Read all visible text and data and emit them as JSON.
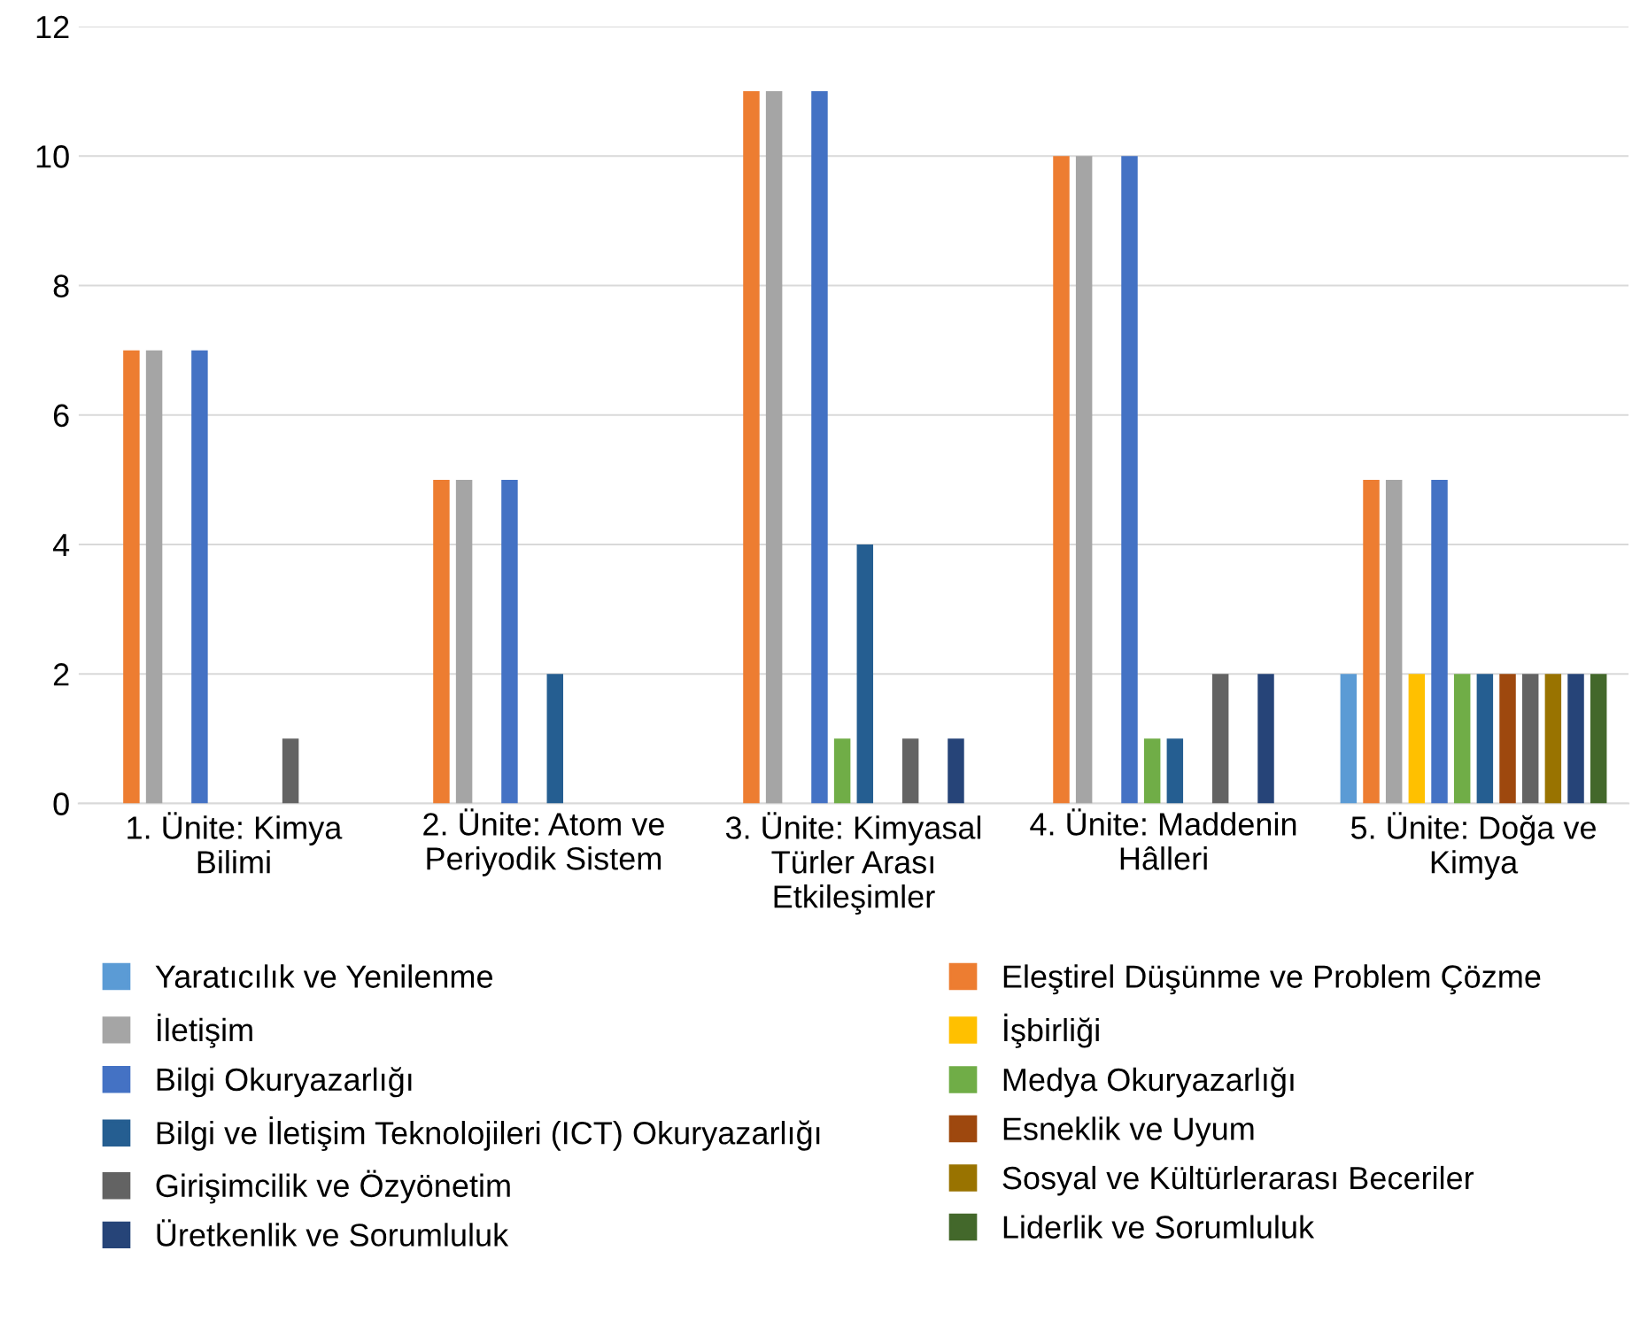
{
  "chart_data": {
    "type": "bar",
    "categories": [
      "1. Ünite: Kimya\nBilimi",
      "2. Ünite: Atom ve\nPeriyodik Sistem",
      "3. Ünite: Kimyasal\nTürler Arası\nEtkileşimler",
      "4. Ünite: Maddenin\nHâlleri",
      "5. Ünite: Doğa ve\nKimya"
    ],
    "series": [
      {
        "name": "Yaratıcılık ve Yenilenme",
        "color": "#5b9bd5",
        "values": [
          0,
          0,
          0,
          0,
          2
        ]
      },
      {
        "name": "Eleştirel Düşünme ve Problem Çözme",
        "color": "#ed7d31",
        "values": [
          7,
          5,
          11,
          10,
          5
        ]
      },
      {
        "name": "İletişim",
        "color": "#a5a5a5",
        "values": [
          7,
          5,
          11,
          10,
          5
        ]
      },
      {
        "name": "İşbirliği",
        "color": "#ffc000",
        "values": [
          0,
          0,
          0,
          0,
          2
        ]
      },
      {
        "name": "Bilgi Okuryazarlığı",
        "color": "#4472c4",
        "values": [
          7,
          5,
          11,
          10,
          5
        ]
      },
      {
        "name": "Medya Okuryazarlığı",
        "color": "#70ad47",
        "values": [
          0,
          0,
          1,
          1,
          2
        ]
      },
      {
        "name": "Bilgi ve İletişim Teknolojileri (ICT) Okuryazarlığı",
        "color": "#255e91",
        "values": [
          0,
          2,
          4,
          1,
          2
        ]
      },
      {
        "name": "Esneklik ve Uyum",
        "color": "#9e480e",
        "values": [
          0,
          0,
          0,
          0,
          2
        ]
      },
      {
        "name": "Girişimcilik ve Özyönetim",
        "color": "#636363",
        "values": [
          1,
          0,
          1,
          2,
          2
        ]
      },
      {
        "name": "Sosyal ve Kültürlerarası Beceriler",
        "color": "#997300",
        "values": [
          0,
          0,
          0,
          0,
          2
        ]
      },
      {
        "name": "Üretkenlik ve Sorumluluk",
        "color": "#264478",
        "values": [
          0,
          0,
          1,
          2,
          2
        ]
      },
      {
        "name": "Liderlik ve Sorumluluk",
        "color": "#43682b",
        "values": [
          0,
          0,
          0,
          0,
          2
        ]
      }
    ],
    "ylim": [
      0,
      12
    ],
    "yticks": [
      0,
      2,
      4,
      6,
      8,
      10,
      12
    ],
    "grid": "y",
    "legend": "bottom"
  }
}
